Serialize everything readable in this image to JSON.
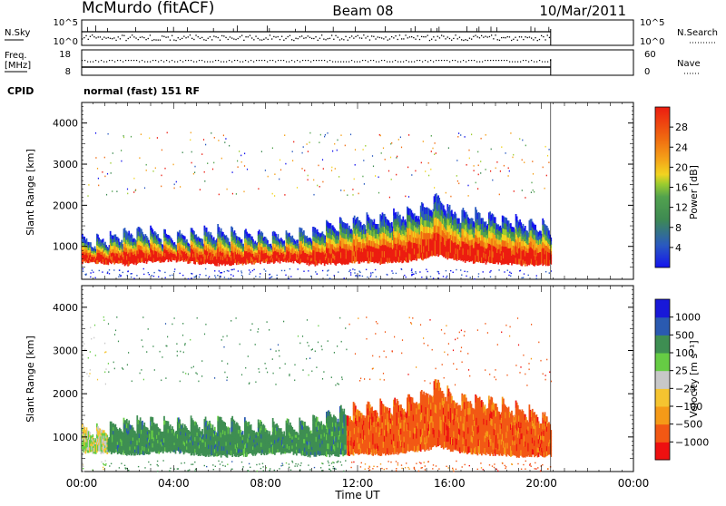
{
  "header": {
    "station": "McMurdo (fitACF)",
    "beam": "Beam 08",
    "date": "10/Mar/2011"
  },
  "noise_panel": {
    "left_label": "N.Sky",
    "left_ticks": [
      "10^5",
      "10^0"
    ],
    "right_label": "N.Search",
    "right_ticks": [
      "10^5",
      "10^0"
    ]
  },
  "freq_panel": {
    "left_label_1": "Freq.",
    "left_label_2": "[MHz]",
    "left_ticks": [
      "18",
      "8"
    ],
    "right_label": "Nave",
    "right_ticks": [
      "60",
      "0"
    ]
  },
  "cpid": {
    "label": "CPID",
    "value": "normal (fast) 151 RF"
  },
  "colors": {
    "scale_power": [
      "#1414ee",
      "#2a5ac0",
      "#3e8a52",
      "#52a24e",
      "#9ccc2e",
      "#f2d420",
      "#f5a018",
      "#f06c10",
      "#ec1c10"
    ],
    "scale_velocity": [
      "#ee1010",
      "#f25814",
      "#f59a18",
      "#f5c430",
      "#c8c8c8",
      "#66cc44",
      "#3e8e52",
      "#2a5ab0",
      "#1818d8"
    ]
  },
  "chart_data": [
    {
      "type": "heatmap",
      "name": "power",
      "ylabel": "Slant Range [km]",
      "yticks": [
        "4000",
        "3000",
        "2000",
        "1000"
      ],
      "ylim": [
        200,
        4500
      ],
      "xlim_hours": [
        0,
        24
      ],
      "data_end_hour": 20.4,
      "colorbar_label": "Power [dB]",
      "colorbar_ticks": [
        "28",
        "24",
        "20",
        "16",
        "12",
        "8",
        "4"
      ],
      "colorbar_range": [
        0,
        32
      ],
      "echo_band": {
        "hours": [
          0,
          1,
          2,
          3,
          4,
          5,
          6,
          7,
          8,
          9,
          10,
          11,
          12,
          13,
          14,
          15,
          15.5,
          16,
          17,
          18,
          19,
          20,
          20.4
        ],
        "bottom": [
          620,
          600,
          560,
          640,
          660,
          600,
          560,
          580,
          620,
          640,
          560,
          580,
          620,
          600,
          640,
          720,
          800,
          700,
          620,
          600,
          560,
          560,
          580
        ],
        "top": [
          1250,
          1350,
          1500,
          1500,
          1400,
          1450,
          1500,
          1420,
          1400,
          1450,
          1500,
          1700,
          1800,
          1850,
          1950,
          2100,
          2350,
          2000,
          1950,
          1850,
          1750,
          1650,
          1500
        ]
      }
    },
    {
      "type": "heatmap",
      "name": "velocity",
      "ylabel": "Slant Range [km]",
      "yticks": [
        "4000",
        "3000",
        "2000",
        "1000"
      ],
      "ylim": [
        200,
        4500
      ],
      "xlim_hours": [
        0,
        24
      ],
      "data_end_hour": 20.4,
      "xticks": [
        "00:00",
        "04:00",
        "08:00",
        "12:00",
        "16:00",
        "20:00",
        "00:00"
      ],
      "xlabel": "Time UT",
      "colorbar_label": "Velocity [m s⁻¹]",
      "colorbar_ticks": [
        "1000",
        "500",
        "100",
        "25",
        "−25",
        "−100",
        "−500",
        "−1000"
      ],
      "echo_band": {
        "hours": [
          0,
          1,
          2,
          3,
          4,
          5,
          6,
          7,
          8,
          9,
          10,
          11,
          12,
          13,
          14,
          15,
          15.5,
          16,
          17,
          18,
          19,
          20,
          20.4
        ],
        "bottom": [
          660,
          640,
          600,
          640,
          660,
          600,
          560,
          580,
          620,
          640,
          560,
          580,
          620,
          600,
          640,
          720,
          800,
          700,
          620,
          600,
          560,
          560,
          580
        ],
        "top": [
          1300,
          1350,
          1500,
          1500,
          1450,
          1450,
          1500,
          1450,
          1400,
          1450,
          1500,
          1700,
          1800,
          1850,
          1950,
          2150,
          2400,
          2050,
          2050,
          1950,
          1800,
          1650,
          1450
        ]
      },
      "sign_change_hour": 11.5
    }
  ]
}
